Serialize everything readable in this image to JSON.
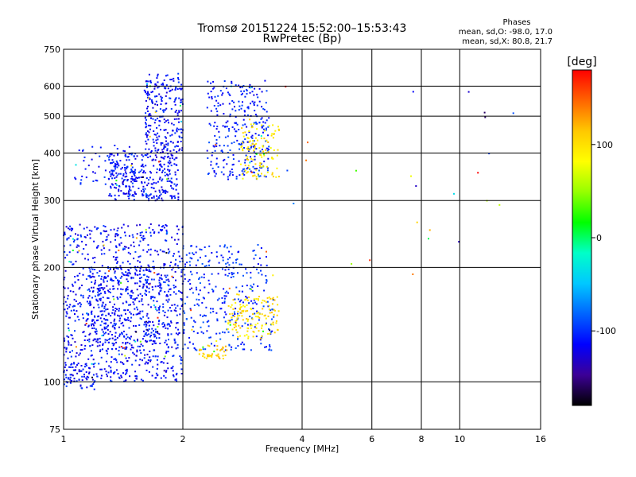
{
  "chart_data": {
    "type": "scatter",
    "title": "Tromsø 20151224 15:52:00–15:53:43",
    "subtitle": "RwPretec (Bp)",
    "xlabel": "Frequency [MHz]",
    "ylabel": "Stationary phase Virtual Height [km]",
    "x_scale": "log",
    "y_scale": "log",
    "xlim": [
      1,
      16
    ],
    "ylim": [
      75,
      750
    ],
    "x_ticks": [
      1,
      2,
      4,
      6,
      8,
      10,
      16
    ],
    "y_ticks": [
      75,
      100,
      200,
      300,
      400,
      500,
      600,
      750
    ],
    "grid": true,
    "stats": {
      "title": "Phases",
      "line_o": "mean, sd,O: -98.0, 17.0",
      "line_x": "mean, sd,X: 80.8, 21.7"
    },
    "colorbar": {
      "label": "[deg]",
      "range": [
        -180,
        180
      ],
      "ticks": [
        100,
        0,
        -100
      ],
      "colors": [
        "#000000",
        "#3c0096",
        "#0000ff",
        "#0064ff",
        "#00c8ff",
        "#00ffc8",
        "#00ff00",
        "#96ff00",
        "#ffff00",
        "#ffc800",
        "#ff6400",
        "#ff0000"
      ]
    },
    "clusters": [
      {
        "f": [
          1.3,
          1.95
        ],
        "h": [
          300,
          400
        ],
        "n": 320,
        "phase": -112
      },
      {
        "f": [
          1.6,
          2.0
        ],
        "h": [
          400,
          650
        ],
        "n": 260,
        "phase": -112
      },
      {
        "f": [
          1.05,
          1.5
        ],
        "h": [
          320,
          420
        ],
        "n": 60,
        "phase": -105
      },
      {
        "f": [
          2.3,
          3.3
        ],
        "h": [
          340,
          620
        ],
        "n": 300,
        "phase": -105
      },
      {
        "f": [
          2.8,
          3.5
        ],
        "h": [
          340,
          480
        ],
        "n": 110,
        "phase": 95
      },
      {
        "f": [
          1.0,
          2.0
        ],
        "h": [
          100,
          260
        ],
        "n": 900,
        "phase": -112
      },
      {
        "f": [
          1.15,
          1.85
        ],
        "h": [
          120,
          200
        ],
        "n": 300,
        "phase": -108
      },
      {
        "f": [
          2.0,
          3.4
        ],
        "h": [
          120,
          230
        ],
        "n": 320,
        "phase": -100
      },
      {
        "f": [
          2.6,
          3.5
        ],
        "h": [
          130,
          170
        ],
        "n": 140,
        "phase": 100
      },
      {
        "f": [
          2.2,
          2.6
        ],
        "h": [
          115,
          125
        ],
        "n": 40,
        "phase": 110
      },
      {
        "f": [
          1.0,
          1.2
        ],
        "h": [
          95,
          112
        ],
        "n": 60,
        "phase": -112
      },
      {
        "f": [
          3.3,
          16
        ],
        "h": [
          180,
          620
        ],
        "n": 26,
        "phase": 20,
        "spread": 180
      }
    ]
  }
}
